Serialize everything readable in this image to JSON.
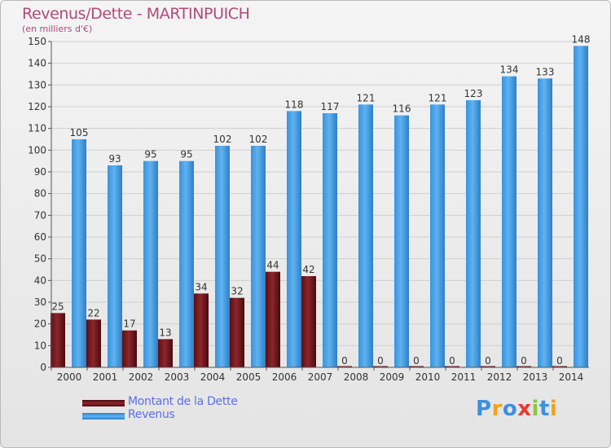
{
  "header": {
    "title": "Revenus/Dette - MARTINPUICH",
    "subtitle": "(en milliers d'€)"
  },
  "colors": {
    "dette": "#7a1a1f",
    "revenus": "#3d9ee6",
    "grid": "#cfcfcf",
    "axis_text": "#333333"
  },
  "legend": {
    "items": [
      {
        "label": "Montant de la Dette",
        "color": "#7a1a1f"
      },
      {
        "label": "Revenus",
        "color": "#3d9ee6"
      }
    ]
  },
  "logo": {
    "text": "Proxiti",
    "letters": [
      {
        "ch": "P",
        "color": "#3d8fe0"
      },
      {
        "ch": "r",
        "color": "#f2a21c"
      },
      {
        "ch": "o",
        "color": "#3d8fe0"
      },
      {
        "ch": "x",
        "color": "#e8392a"
      },
      {
        "ch": "i",
        "color": "#8cc63e"
      },
      {
        "ch": "t",
        "color": "#3d8fe0"
      },
      {
        "ch": "i",
        "color": "#f2a21c"
      }
    ]
  },
  "chart_data": {
    "type": "bar",
    "title": "Revenus/Dette - MARTINPUICH",
    "ylabel": "(en milliers d'€)",
    "xlabel": "",
    "categories": [
      "2000",
      "2001",
      "2002",
      "2003",
      "2004",
      "2005",
      "2006",
      "2007",
      "2008",
      "2009",
      "2010",
      "2011",
      "2012",
      "2013",
      "2014"
    ],
    "series": [
      {
        "name": "Montant de la Dette",
        "values": [
          25,
          22,
          17,
          13,
          34,
          32,
          44,
          42,
          0,
          0,
          0,
          0,
          0,
          0,
          0
        ]
      },
      {
        "name": "Revenus",
        "values": [
          105,
          93,
          95,
          95,
          102,
          102,
          118,
          117,
          121,
          116,
          121,
          123,
          134,
          133,
          148
        ]
      }
    ],
    "ylim": [
      0,
      150
    ],
    "yticks": [
      0,
      10,
      20,
      30,
      40,
      50,
      60,
      70,
      80,
      90,
      100,
      110,
      120,
      130,
      140,
      150
    ],
    "grid": true,
    "legend_position": "bottom-left"
  }
}
